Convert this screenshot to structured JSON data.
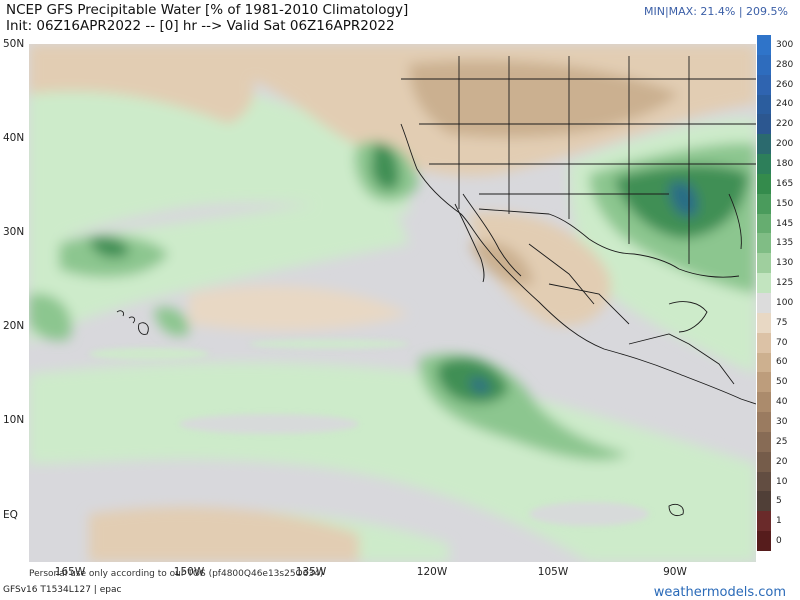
{
  "header": {
    "title": "NCEP GFS Precipitable Water [% of 1981-2010 Climatology]",
    "subtitle": "Init: 06Z16APR2022 -- [0] hr --> Valid Sat 06Z16APR2022",
    "minmax": "MIN|MAX: 21.4% | 209.5%"
  },
  "axes": {
    "lat_labels": [
      "50N",
      "40N",
      "30N",
      "20N",
      "10N",
      "EQ"
    ],
    "lon_labels": [
      "165W",
      "150W",
      "135W",
      "120W",
      "105W",
      "90W"
    ]
  },
  "colorbar": {
    "ticks": [
      "300",
      "280",
      "260",
      "240",
      "220",
      "200",
      "180",
      "165",
      "150",
      "145",
      "135",
      "130",
      "125",
      "100",
      "75",
      "70",
      "60",
      "50",
      "40",
      "30",
      "25",
      "20",
      "10",
      "5",
      "1",
      "0"
    ],
    "colors": [
      "#2f74c9",
      "#2e6cbd",
      "#2f64b0",
      "#2b5d9e",
      "#2c5790",
      "#2b6a6e",
      "#2d7f5a",
      "#348b4c",
      "#4a9b5c",
      "#66ad70",
      "#80bd85",
      "#9fcf9e",
      "#c2e4bf",
      "#dcdcdc",
      "#e8d8c4",
      "#dcc2a6",
      "#cdb08f",
      "#bd9d7c",
      "#ab8b6c",
      "#9a7b60",
      "#876b55",
      "#755c4a",
      "#624d41",
      "#503f37",
      "#6a2a2a",
      "#561c1c"
    ]
  },
  "map": {
    "background": "#d8d8dc",
    "moist_light": "#cdebca",
    "moist_mid": "#8cc68f",
    "moist_dark": "#3f8f55",
    "moist_core": "#2b6d86",
    "dry_light": "#e2cdb3",
    "dry_mid": "#cbb090",
    "dry_dark": "#a48a72"
  },
  "footer": {
    "model": "GFSv16 T1534L127 | epac",
    "personal_use": "Personal use only according to our TOS (pf4800Q46e13s25O634)",
    "brand": "weathermodels.com"
  }
}
